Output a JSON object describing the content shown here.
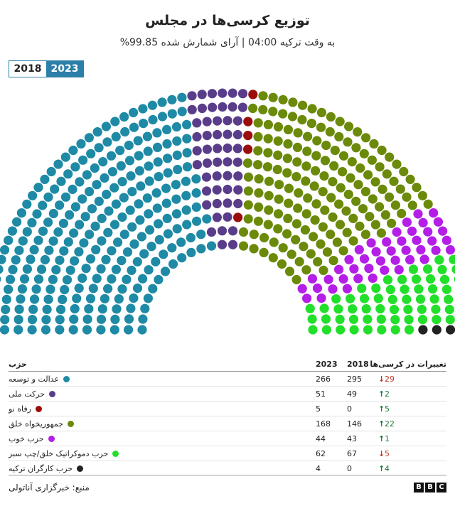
{
  "title": "توزیع کرسی‌ها در مجلس",
  "subtitle": "به وقت ترکیه 04:00 | آرای شمارش شده 99.85%",
  "toggle": {
    "year_2018": "2018",
    "year_2023": "2023",
    "selected": "2023"
  },
  "table": {
    "headers": {
      "party": "حزب",
      "y2023": "2023",
      "y2018": "2018",
      "change": "تغییرات در کرسی‌ها"
    },
    "rows": [
      {
        "party": "عدالت و توسعه",
        "color": "#1e8aa5",
        "y2023": "266",
        "y2018": "295",
        "change": "29",
        "dir": "down"
      },
      {
        "party": "حرکت ملی",
        "color": "#5a3d8a",
        "y2023": "51",
        "y2018": "49",
        "change": "2",
        "dir": "up"
      },
      {
        "party": "رفاه نو",
        "color": "#9b0d0d",
        "y2023": "5",
        "y2018": "0",
        "change": "5",
        "dir": "up"
      },
      {
        "party": "جمهوریخواه خلق",
        "color": "#6b8a0a",
        "y2023": "168",
        "y2018": "146",
        "change": "22",
        "dir": "up"
      },
      {
        "party": "حزب خوب",
        "color": "#b41ee6",
        "y2023": "44",
        "y2018": "43",
        "change": "1",
        "dir": "up"
      },
      {
        "party": "حزب دموکراتیک خلق/چپ سبز",
        "color": "#22e02a",
        "y2023": "62",
        "y2018": "67",
        "change": "5",
        "dir": "down"
      },
      {
        "party": "حزب کارگران ترکیه",
        "color": "#222222",
        "y2023": "4",
        "y2018": "0",
        "change": "4",
        "dir": "up"
      }
    ]
  },
  "source": "منبع: خبرگزاری آناتولی",
  "logo": [
    "B",
    "B",
    "C"
  ],
  "chart_data": {
    "type": "parliament",
    "year": "2023",
    "total_seats": 600,
    "series": [
      {
        "name": "عدالت و توسعه",
        "value": 266,
        "color": "#1e8aa5"
      },
      {
        "name": "حرکت ملی",
        "value": 51,
        "color": "#5a3d8a"
      },
      {
        "name": "رفاه نو",
        "value": 5,
        "color": "#9b0d0d"
      },
      {
        "name": "جمهوریخواه خلق",
        "value": 168,
        "color": "#6b8a0a"
      },
      {
        "name": "حزب خوب",
        "value": 44,
        "color": "#b41ee6"
      },
      {
        "name": "حزب دموکراتیک خلق/چپ سبز",
        "value": 62,
        "color": "#22e02a"
      },
      {
        "name": "حزب کارگران ترکیه",
        "value": 4,
        "color": "#222222"
      }
    ]
  }
}
